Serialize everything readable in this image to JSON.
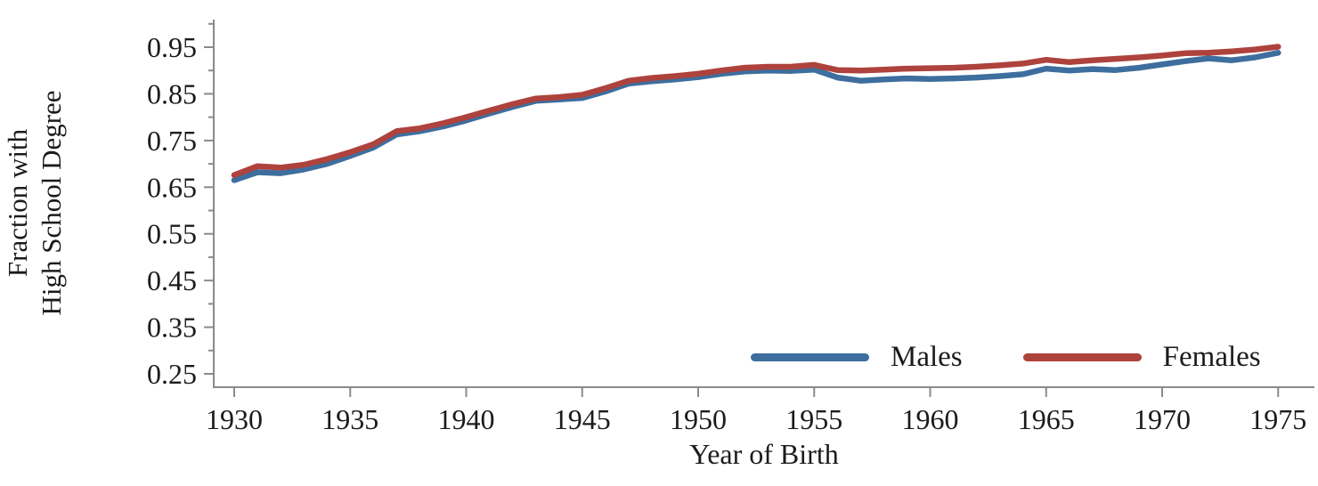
{
  "chart_data": {
    "type": "line",
    "title": "",
    "xlabel": "Year of Birth",
    "ylabel_lines": [
      "Fraction with",
      "High School Degree"
    ],
    "x": [
      1930,
      1931,
      1932,
      1933,
      1934,
      1935,
      1936,
      1937,
      1938,
      1939,
      1940,
      1941,
      1942,
      1943,
      1944,
      1945,
      1946,
      1947,
      1948,
      1949,
      1950,
      1951,
      1952,
      1953,
      1954,
      1955,
      1956,
      1957,
      1958,
      1959,
      1960,
      1961,
      1962,
      1963,
      1964,
      1965,
      1966,
      1967,
      1968,
      1969,
      1970,
      1971,
      1972,
      1973,
      1974,
      1975
    ],
    "series": [
      {
        "name": "Males",
        "color": "#3D6E9E",
        "values": [
          0.665,
          0.682,
          0.68,
          0.688,
          0.7,
          0.717,
          0.735,
          0.763,
          0.77,
          0.78,
          0.793,
          0.808,
          0.822,
          0.835,
          0.838,
          0.841,
          0.855,
          0.872,
          0.877,
          0.881,
          0.886,
          0.893,
          0.898,
          0.9,
          0.899,
          0.902,
          0.885,
          0.878,
          0.881,
          0.883,
          0.882,
          0.883,
          0.885,
          0.888,
          0.892,
          0.904,
          0.9,
          0.903,
          0.901,
          0.906,
          0.913,
          0.92,
          0.926,
          0.922,
          0.928,
          0.938
        ]
      },
      {
        "name": "Females",
        "color": "#AE423C",
        "values": [
          0.676,
          0.695,
          0.692,
          0.698,
          0.71,
          0.725,
          0.742,
          0.77,
          0.776,
          0.787,
          0.8,
          0.814,
          0.828,
          0.84,
          0.843,
          0.848,
          0.862,
          0.878,
          0.884,
          0.888,
          0.893,
          0.9,
          0.906,
          0.908,
          0.908,
          0.912,
          0.901,
          0.9,
          0.902,
          0.904,
          0.905,
          0.906,
          0.908,
          0.911,
          0.915,
          0.923,
          0.918,
          0.922,
          0.925,
          0.928,
          0.932,
          0.937,
          0.938,
          0.941,
          0.945,
          0.951
        ]
      }
    ],
    "xlim": [
      1930,
      1975
    ],
    "ylim": [
      0.25,
      1.0
    ],
    "xticks": [
      1930,
      1935,
      1940,
      1945,
      1950,
      1955,
      1960,
      1965,
      1970,
      1975
    ],
    "yticks_major": [
      0.25,
      0.35,
      0.45,
      0.55,
      0.65,
      0.75,
      0.85,
      0.95
    ],
    "yticks_minor": [
      0.3,
      0.4,
      0.5,
      0.6,
      0.7,
      0.8,
      0.9,
      1.0
    ],
    "grid": false,
    "legend_position": "inside-bottom-right",
    "axis_color": "#8a8a8a",
    "text_color": "#1b1b1b"
  },
  "legend": {
    "items": [
      {
        "label": "Males",
        "color": "#3D6E9E"
      },
      {
        "label": "Females",
        "color": "#AE423C"
      }
    ]
  }
}
